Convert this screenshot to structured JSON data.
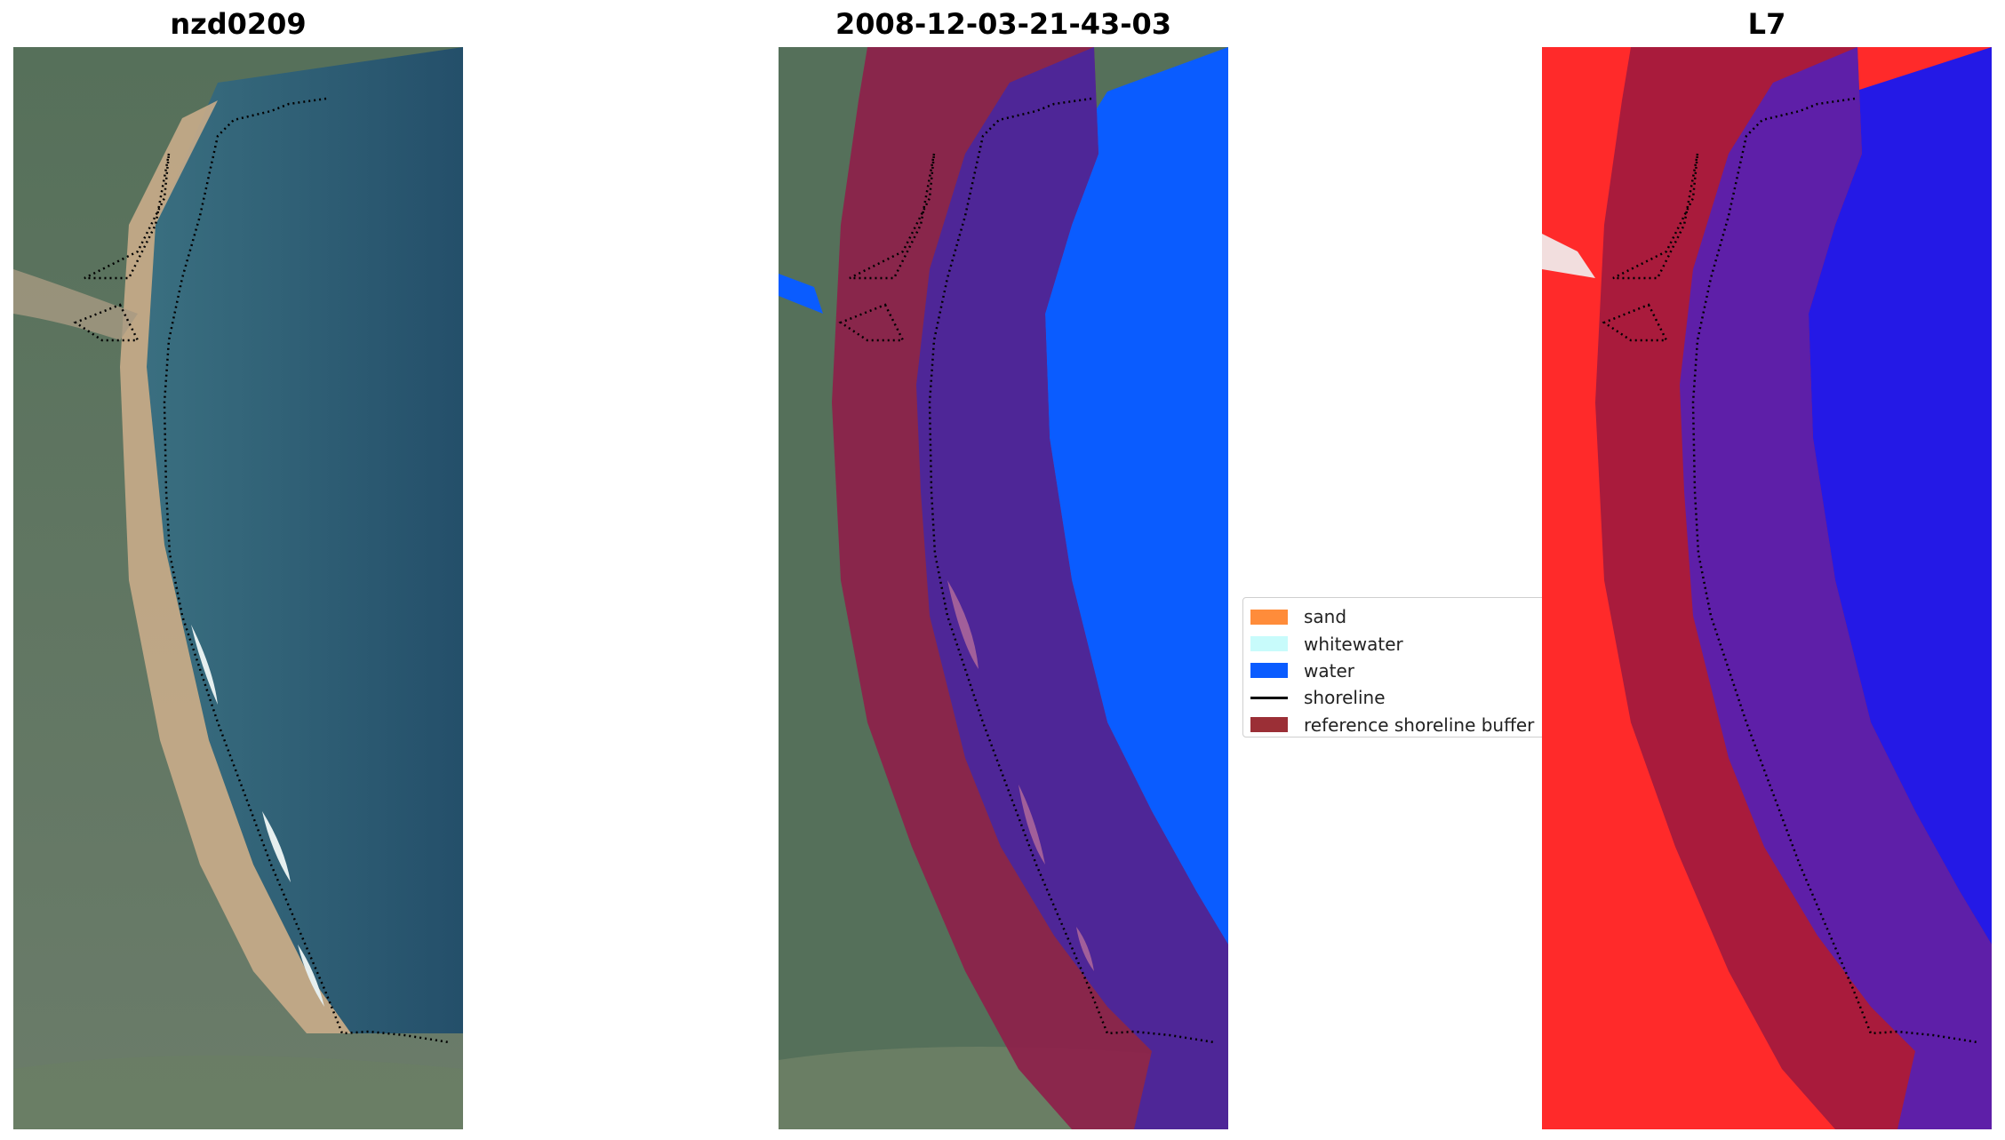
{
  "figure": {
    "titles": {
      "left": "nzd0209",
      "center": "2008-12-03-21-43-03",
      "right": "L7"
    },
    "legend": {
      "items": [
        {
          "label": "sand",
          "kind": "patch",
          "color": "#ff8c3a"
        },
        {
          "label": "whitewater",
          "kind": "patch",
          "color": "#c8fbfb"
        },
        {
          "label": "water",
          "kind": "patch",
          "color": "#0a5cff"
        },
        {
          "label": "shoreline",
          "kind": "line",
          "color": "#000000"
        },
        {
          "label": "reference shoreline buffer",
          "kind": "patch",
          "color": "#9b2f36"
        }
      ]
    },
    "colors": {
      "land_green": "#4f6a52",
      "sand_beige": "#c9ac8a",
      "ocean_blue": "#2c5e72",
      "water_class": "#0a5cff",
      "buffer": "#8e1f4a",
      "buffer_over_water": "#4e2697",
      "index_red": "#ff2a2a",
      "index_blue": "#1818f0"
    }
  }
}
